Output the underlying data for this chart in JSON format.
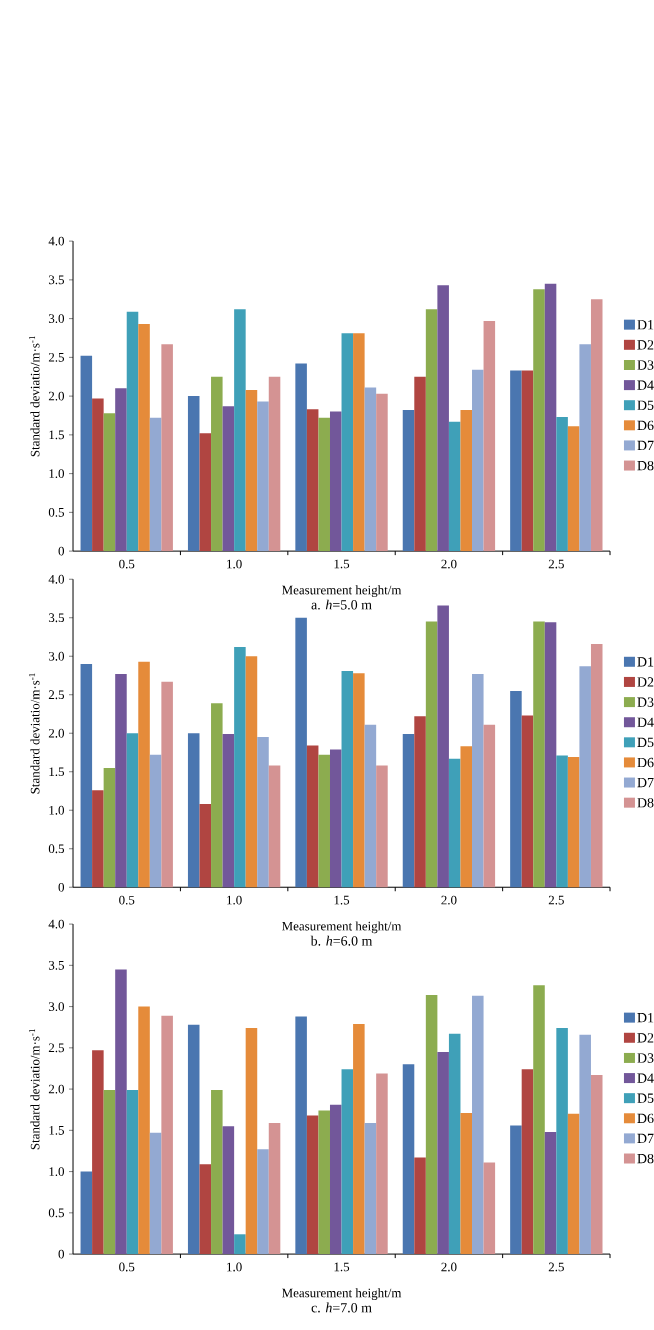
{
  "chart_data": [
    {
      "type": "bar",
      "title": "a. *h*=5.0 m",
      "xlabel": "Measurement height/m",
      "ylabel": "Standard deviatio/m·s$^{-1}$",
      "categories": [
        "0.5",
        "1.0",
        "1.5",
        "2.0",
        "2.5"
      ],
      "ylim": [
        0,
        4
      ],
      "yticks": [
        0,
        {
          "value": 0.5,
          "label": "0.5"
        },
        {
          "value": 1,
          "label": "1.0"
        },
        {
          "value": 1.5,
          "label": "1.5"
        },
        {
          "value": 2,
          "label": "2.0"
        },
        {
          "value": 2.5,
          "label": "2.5"
        },
        {
          "value": 3,
          "label": "3.0"
        },
        {
          "value": 3.5,
          "label": "3.5"
        },
        {
          "value": 4,
          "label": "4.0"
        }
      ],
      "legend": "right",
      "series": [
        {
          "name": "D1",
          "color": "#4a76b0",
          "values": [
            2.52,
            2.0,
            2.42,
            1.82,
            2.33
          ]
        },
        {
          "name": "D2",
          "color": "#b04541",
          "values": [
            1.97,
            1.52,
            1.83,
            2.25,
            2.33
          ]
        },
        {
          "name": "D3",
          "color": "#8cac4f",
          "values": [
            1.78,
            2.25,
            1.72,
            3.12,
            3.38
          ]
        },
        {
          "name": "D4",
          "color": "#72579a",
          "values": [
            2.1,
            1.87,
            1.8,
            3.43,
            3.45
          ]
        },
        {
          "name": "D5",
          "color": "#3fa0b8",
          "values": [
            3.09,
            3.12,
            2.81,
            1.67,
            1.73
          ]
        },
        {
          "name": "D6",
          "color": "#e58b3a",
          "values": [
            2.93,
            2.08,
            2.81,
            1.82,
            1.61
          ]
        },
        {
          "name": "D7",
          "color": "#93a9d2",
          "values": [
            1.72,
            1.93,
            2.11,
            2.34,
            2.67
          ]
        },
        {
          "name": "D8",
          "color": "#d49393",
          "values": [
            2.67,
            2.25,
            2.03,
            2.97,
            3.25
          ]
        }
      ]
    },
    {
      "type": "bar",
      "title": "b. *h*=6.0 m",
      "xlabel": "Measurement height/m",
      "ylabel": "Standard deviatio/m·s$^{-1}$",
      "categories": [
        "0.5",
        "1.0",
        "1.5",
        "2.0",
        "2.5"
      ],
      "ylim": [
        0,
        4
      ],
      "yticks": [
        0,
        {
          "value": 0.5,
          "label": "0.5"
        },
        {
          "value": 1,
          "label": "1.0"
        },
        {
          "value": 1.5,
          "label": "1.5"
        },
        {
          "value": 2,
          "label": "2.0"
        },
        {
          "value": 2.5,
          "label": "2.5"
        },
        {
          "value": 3,
          "label": "3.0"
        },
        {
          "value": 3.5,
          "label": "3.5"
        },
        {
          "value": 4,
          "label": "4.0"
        }
      ],
      "legend": "right",
      "series": [
        {
          "name": "D1",
          "color": "#4a76b0",
          "values": [
            2.9,
            2.0,
            3.5,
            1.99,
            2.55
          ]
        },
        {
          "name": "D2",
          "color": "#b04541",
          "values": [
            1.26,
            1.08,
            1.84,
            2.22,
            2.23
          ]
        },
        {
          "name": "D3",
          "color": "#8cac4f",
          "values": [
            1.55,
            2.39,
            1.72,
            3.45,
            3.45
          ]
        },
        {
          "name": "D4",
          "color": "#72579a",
          "values": [
            2.77,
            1.99,
            1.79,
            3.66,
            3.44
          ]
        },
        {
          "name": "D5",
          "color": "#3fa0b8",
          "values": [
            2.0,
            3.12,
            2.81,
            1.67,
            1.71
          ]
        },
        {
          "name": "D6",
          "color": "#e58b3a",
          "values": [
            2.93,
            3.0,
            2.78,
            1.83,
            1.69
          ]
        },
        {
          "name": "D7",
          "color": "#93a9d2",
          "values": [
            1.72,
            1.95,
            2.11,
            2.77,
            2.87
          ]
        },
        {
          "name": "D8",
          "color": "#d49393",
          "values": [
            2.67,
            1.58,
            1.58,
            2.11,
            3.16
          ]
        }
      ]
    },
    {
      "type": "bar",
      "title": "c. *h*=7.0 m",
      "xlabel": "Measurement height/m",
      "ylabel": "Standard deviatio/m·s$^{-1}$",
      "categories": [
        "0.5",
        "1.0",
        "1.5",
        "2.0",
        "2.5"
      ],
      "ylim": [
        0,
        4
      ],
      "yticks": [
        0,
        {
          "value": 0.5,
          "label": "0.5"
        },
        {
          "value": 1,
          "label": "1.0"
        },
        {
          "value": 1.5,
          "label": "1.5"
        },
        {
          "value": 2,
          "label": "2.0"
        },
        {
          "value": 2.5,
          "label": "2.5"
        },
        {
          "value": 3,
          "label": "3.0"
        },
        {
          "value": 3.5,
          "label": "3.5"
        },
        {
          "value": 4,
          "label": "4.0"
        }
      ],
      "legend": "right",
      "series": [
        {
          "name": "D1",
          "color": "#4a76b0",
          "values": [
            1.0,
            2.78,
            2.88,
            2.3,
            1.56
          ]
        },
        {
          "name": "D2",
          "color": "#b04541",
          "values": [
            2.47,
            1.09,
            1.68,
            1.17,
            2.24
          ]
        },
        {
          "name": "D3",
          "color": "#8cac4f",
          "values": [
            1.99,
            1.99,
            1.74,
            3.14,
            3.26
          ]
        },
        {
          "name": "D4",
          "color": "#72579a",
          "values": [
            3.45,
            1.55,
            1.81,
            2.45,
            1.48
          ]
        },
        {
          "name": "D5",
          "color": "#3fa0b8",
          "values": [
            1.99,
            0.24,
            2.24,
            2.67,
            2.74
          ]
        },
        {
          "name": "D6",
          "color": "#e58b3a",
          "values": [
            3.0,
            2.74,
            2.79,
            1.71,
            1.7
          ]
        },
        {
          "name": "D7",
          "color": "#93a9d2",
          "values": [
            1.47,
            1.27,
            1.59,
            3.13,
            2.66
          ]
        },
        {
          "name": "D8",
          "color": "#d49393",
          "values": [
            2.89,
            1.59,
            2.19,
            1.11,
            2.17
          ]
        }
      ]
    }
  ]
}
